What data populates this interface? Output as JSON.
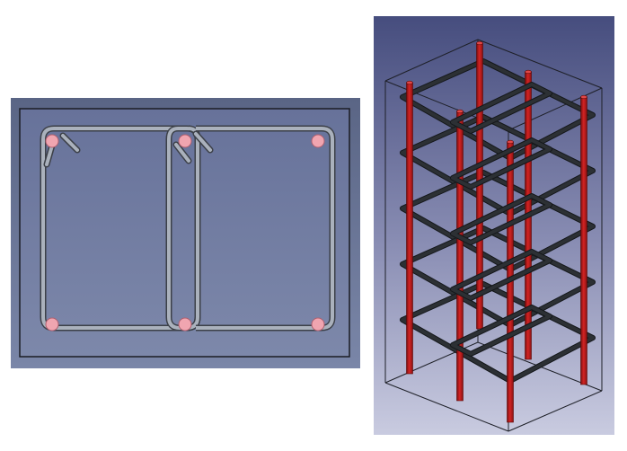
{
  "views": {
    "section": {
      "label": "",
      "background_top": "#5a6585",
      "background_bottom": "#7a86a8",
      "concrete_fill": "#717d9e",
      "concrete_outline": "#1b1d24",
      "stirrup_color": "#9aa2ae",
      "bar_color": "#f0a5b0",
      "longitudinal_bar_count": 6,
      "stirrup_count": 2
    },
    "isometric": {
      "label": "",
      "background_top": "#464d7e",
      "background_bottom": "#c9cbe0",
      "bar_color": "#c41d1d",
      "stirrup_color": "#2c3034",
      "outline_color": "#1e2028",
      "longitudinal_bar_count": 6,
      "stirrup_levels": 5
    }
  }
}
